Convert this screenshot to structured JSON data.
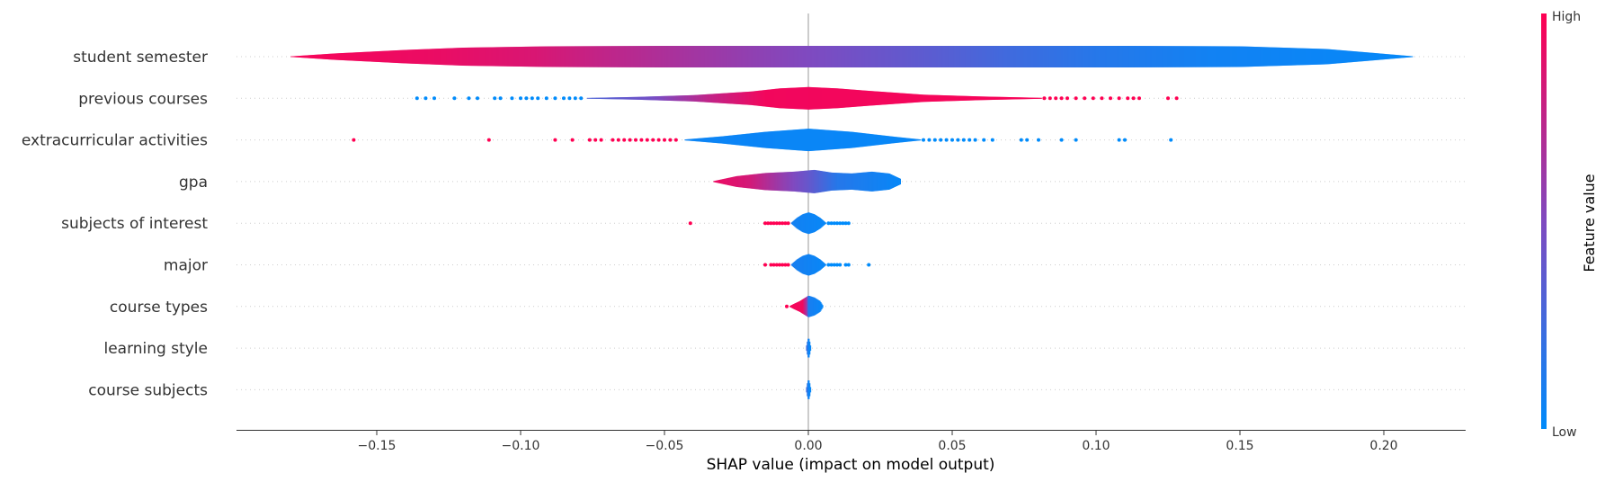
{
  "chart_data": {
    "type": "violin",
    "xlabel": "SHAP value (impact on model output)",
    "xlim": [
      -0.2,
      0.2285
    ],
    "xticks": [
      -0.15,
      -0.1,
      -0.05,
      0.0,
      0.05,
      0.1,
      0.15,
      0.2
    ],
    "xtick_labels": [
      "−0.15",
      "−0.10",
      "−0.05",
      "0.00",
      "0.05",
      "0.10",
      "0.15",
      "0.20"
    ],
    "grid": false,
    "colorbar": {
      "label": "Feature value",
      "high_label": "High",
      "low_label": "Low",
      "low_color": "#008bfb",
      "high_color": "#ff0052"
    },
    "features": [
      {
        "name": "student semester",
        "min": -0.18,
        "max": 0.21,
        "profile": [
          [
            -0.18,
            0.3
          ],
          [
            -0.165,
            3.5
          ],
          [
            -0.14,
            7.5
          ],
          [
            -0.12,
            10
          ],
          [
            -0.09,
            11.5
          ],
          [
            -0.05,
            12
          ],
          [
            -0.02,
            12
          ],
          [
            0.0,
            12
          ],
          [
            0.03,
            12
          ],
          [
            0.07,
            12
          ],
          [
            0.11,
            12
          ],
          [
            0.15,
            11.5
          ],
          [
            0.18,
            8.5
          ],
          [
            0.195,
            4.5
          ],
          [
            0.21,
            0.4
          ]
        ],
        "colors": [
          [
            -0.18,
            0.97
          ],
          [
            -0.13,
            0.92
          ],
          [
            -0.095,
            0.85
          ],
          [
            -0.07,
            0.75
          ],
          [
            -0.04,
            0.64
          ],
          [
            -0.015,
            0.55
          ],
          [
            0.015,
            0.45
          ],
          [
            0.045,
            0.35
          ],
          [
            0.07,
            0.25
          ],
          [
            0.1,
            0.15
          ],
          [
            0.14,
            0.07
          ],
          [
            0.21,
            0.02
          ]
        ],
        "outliers": []
      },
      {
        "name": "previous courses",
        "min": -0.077,
        "max": 0.081,
        "profile": [
          [
            -0.077,
            0.4
          ],
          [
            -0.06,
            1.5
          ],
          [
            -0.04,
            3.5
          ],
          [
            -0.02,
            7.5
          ],
          [
            -0.01,
            11
          ],
          [
            0.0,
            12.5
          ],
          [
            0.01,
            11
          ],
          [
            0.02,
            8.5
          ],
          [
            0.04,
            4
          ],
          [
            0.06,
            2
          ],
          [
            0.081,
            0.5
          ]
        ],
        "colors": [
          [
            -0.077,
            0.3
          ],
          [
            -0.055,
            0.45
          ],
          [
            -0.035,
            0.75
          ],
          [
            -0.015,
            0.95
          ],
          [
            0.0,
            0.95
          ],
          [
            0.081,
            0.97
          ]
        ],
        "outliers": [
          {
            "x": -0.136,
            "h": 0
          },
          {
            "x": -0.133,
            "h": 0
          },
          {
            "x": -0.13,
            "h": 0
          },
          {
            "x": -0.123,
            "h": 0
          },
          {
            "x": -0.118,
            "h": 0
          },
          {
            "x": -0.115,
            "h": 0
          },
          {
            "x": -0.109,
            "h": 0
          },
          {
            "x": -0.107,
            "h": 0
          },
          {
            "x": -0.103,
            "h": 0
          },
          {
            "x": -0.1,
            "h": 0
          },
          {
            "x": -0.098,
            "h": 0
          },
          {
            "x": -0.096,
            "h": 0
          },
          {
            "x": -0.094,
            "h": 0
          },
          {
            "x": -0.091,
            "h": 0
          },
          {
            "x": -0.088,
            "h": 0
          },
          {
            "x": -0.085,
            "h": 0
          },
          {
            "x": -0.083,
            "h": 0
          },
          {
            "x": -0.081,
            "h": 0
          },
          {
            "x": -0.079,
            "h": 0
          },
          {
            "x": 0.082,
            "h": 1
          },
          {
            "x": 0.084,
            "h": 1
          },
          {
            "x": 0.086,
            "h": 1
          },
          {
            "x": 0.088,
            "h": 1
          },
          {
            "x": 0.09,
            "h": 1
          },
          {
            "x": 0.093,
            "h": 1
          },
          {
            "x": 0.096,
            "h": 1
          },
          {
            "x": 0.099,
            "h": 1
          },
          {
            "x": 0.102,
            "h": 1
          },
          {
            "x": 0.105,
            "h": 1
          },
          {
            "x": 0.108,
            "h": 1
          },
          {
            "x": 0.111,
            "h": 1
          },
          {
            "x": 0.113,
            "h": 1
          },
          {
            "x": 0.115,
            "h": 1
          },
          {
            "x": 0.125,
            "h": 1
          },
          {
            "x": 0.128,
            "h": 1
          }
        ]
      },
      {
        "name": "extracurricular activities",
        "min": -0.043,
        "max": 0.039,
        "profile": [
          [
            -0.043,
            0.5
          ],
          [
            -0.03,
            4
          ],
          [
            -0.015,
            9
          ],
          [
            0.0,
            12.5
          ],
          [
            0.015,
            9
          ],
          [
            0.03,
            3.5
          ],
          [
            0.039,
            0.5
          ]
        ],
        "colors": [
          [
            -0.043,
            0.05
          ],
          [
            0.039,
            0.03
          ]
        ],
        "outliers": [
          {
            "x": -0.158,
            "h": 1
          },
          {
            "x": -0.111,
            "h": 1
          },
          {
            "x": -0.088,
            "h": 1
          },
          {
            "x": -0.082,
            "h": 1
          },
          {
            "x": -0.076,
            "h": 1
          },
          {
            "x": -0.074,
            "h": 1
          },
          {
            "x": -0.072,
            "h": 1
          },
          {
            "x": -0.068,
            "h": 1
          },
          {
            "x": -0.066,
            "h": 1
          },
          {
            "x": -0.064,
            "h": 1
          },
          {
            "x": -0.062,
            "h": 1
          },
          {
            "x": -0.06,
            "h": 1
          },
          {
            "x": -0.058,
            "h": 1
          },
          {
            "x": -0.056,
            "h": 1
          },
          {
            "x": -0.054,
            "h": 1
          },
          {
            "x": -0.052,
            "h": 1
          },
          {
            "x": -0.05,
            "h": 1
          },
          {
            "x": -0.048,
            "h": 1
          },
          {
            "x": -0.046,
            "h": 1
          },
          {
            "x": 0.04,
            "h": 0
          },
          {
            "x": 0.042,
            "h": 0
          },
          {
            "x": 0.044,
            "h": 0
          },
          {
            "x": 0.046,
            "h": 0
          },
          {
            "x": 0.048,
            "h": 0
          },
          {
            "x": 0.05,
            "h": 0
          },
          {
            "x": 0.052,
            "h": 0
          },
          {
            "x": 0.054,
            "h": 0
          },
          {
            "x": 0.056,
            "h": 0
          },
          {
            "x": 0.058,
            "h": 0
          },
          {
            "x": 0.061,
            "h": 0
          },
          {
            "x": 0.064,
            "h": 0
          },
          {
            "x": 0.074,
            "h": 0
          },
          {
            "x": 0.076,
            "h": 0
          },
          {
            "x": 0.08,
            "h": 0
          },
          {
            "x": 0.088,
            "h": 0
          },
          {
            "x": 0.093,
            "h": 0
          },
          {
            "x": 0.108,
            "h": 0
          },
          {
            "x": 0.11,
            "h": 0
          },
          {
            "x": 0.126,
            "h": 0
          }
        ]
      },
      {
        "name": "gpa",
        "min": -0.033,
        "max": 0.032,
        "profile": [
          [
            -0.033,
            0.5
          ],
          [
            -0.025,
            6
          ],
          [
            -0.015,
            9.5
          ],
          [
            -0.005,
            11
          ],
          [
            0.002,
            13
          ],
          [
            0.008,
            10
          ],
          [
            0.015,
            9
          ],
          [
            0.022,
            11
          ],
          [
            0.028,
            9
          ],
          [
            0.032,
            3
          ]
        ],
        "colors": [
          [
            -0.033,
            0.93
          ],
          [
            -0.02,
            0.82
          ],
          [
            -0.01,
            0.6
          ],
          [
            0.0,
            0.4
          ],
          [
            0.01,
            0.15
          ],
          [
            0.032,
            0.03
          ]
        ],
        "outliers": []
      },
      {
        "name": "subjects of interest",
        "min": -0.006,
        "max": 0.006,
        "profile": [
          [
            -0.006,
            0.5
          ],
          [
            -0.004,
            6
          ],
          [
            -0.002,
            10
          ],
          [
            0.0,
            12
          ],
          [
            0.002,
            10
          ],
          [
            0.004,
            6
          ],
          [
            0.006,
            0.5
          ]
        ],
        "colors": [
          [
            -0.006,
            0.08
          ],
          [
            0.006,
            0.03
          ]
        ],
        "outliers": [
          {
            "x": -0.041,
            "h": 1
          },
          {
            "x": -0.015,
            "h": 1
          },
          {
            "x": -0.014,
            "h": 1
          },
          {
            "x": -0.013,
            "h": 1
          },
          {
            "x": -0.012,
            "h": 1
          },
          {
            "x": -0.011,
            "h": 1
          },
          {
            "x": -0.01,
            "h": 1
          },
          {
            "x": -0.009,
            "h": 1
          },
          {
            "x": -0.008,
            "h": 1
          },
          {
            "x": -0.007,
            "h": 1
          },
          {
            "x": 0.007,
            "h": 0
          },
          {
            "x": 0.008,
            "h": 0
          },
          {
            "x": 0.009,
            "h": 0
          },
          {
            "x": 0.01,
            "h": 0
          },
          {
            "x": 0.011,
            "h": 0
          },
          {
            "x": 0.012,
            "h": 0
          },
          {
            "x": 0.013,
            "h": 0
          },
          {
            "x": 0.014,
            "h": 0
          }
        ]
      },
      {
        "name": "major",
        "min": -0.006,
        "max": 0.006,
        "profile": [
          [
            -0.006,
            0.5
          ],
          [
            -0.004,
            6
          ],
          [
            -0.002,
            10
          ],
          [
            0.0,
            12
          ],
          [
            0.002,
            10
          ],
          [
            0.004,
            6
          ],
          [
            0.006,
            0.5
          ]
        ],
        "colors": [
          [
            -0.006,
            0.1
          ],
          [
            0.006,
            0.03
          ]
        ],
        "outliers": [
          {
            "x": -0.015,
            "h": 1
          },
          {
            "x": -0.013,
            "h": 1
          },
          {
            "x": -0.012,
            "h": 1
          },
          {
            "x": -0.011,
            "h": 1
          },
          {
            "x": -0.01,
            "h": 1
          },
          {
            "x": -0.009,
            "h": 1
          },
          {
            "x": -0.008,
            "h": 1
          },
          {
            "x": -0.007,
            "h": 1
          },
          {
            "x": 0.007,
            "h": 0
          },
          {
            "x": 0.008,
            "h": 0
          },
          {
            "x": 0.009,
            "h": 0
          },
          {
            "x": 0.01,
            "h": 0
          },
          {
            "x": 0.011,
            "h": 0
          },
          {
            "x": 0.013,
            "h": 0
          },
          {
            "x": 0.014,
            "h": 0
          },
          {
            "x": 0.021,
            "h": 0
          }
        ]
      },
      {
        "name": "course types",
        "min": -0.0065,
        "max": 0.005,
        "profile": [
          [
            -0.0065,
            0.5
          ],
          [
            -0.005,
            3
          ],
          [
            -0.003,
            6
          ],
          [
            -0.001,
            10
          ],
          [
            0.0,
            12
          ],
          [
            0.002,
            10
          ],
          [
            0.004,
            6
          ],
          [
            0.005,
            0.8
          ]
        ],
        "colors": [
          [
            -0.0065,
            0.97
          ],
          [
            -0.002,
            0.94
          ],
          [
            -0.0005,
            0.6
          ],
          [
            0.0,
            0.1
          ],
          [
            0.005,
            0.03
          ]
        ],
        "outliers": [
          {
            "x": -0.0075,
            "h": 1
          }
        ]
      },
      {
        "name": "learning style",
        "min": -0.0008,
        "max": 0.0008,
        "profile": [
          [
            -0.0008,
            0.5
          ],
          [
            -0.0005,
            6
          ],
          [
            0.0,
            12
          ],
          [
            0.0005,
            6
          ],
          [
            0.0008,
            0.5
          ]
        ],
        "colors": [
          [
            -0.0008,
            0.3
          ],
          [
            0.0,
            0.05
          ],
          [
            0.0008,
            0.03
          ]
        ],
        "outliers": []
      },
      {
        "name": "course subjects",
        "min": -0.0008,
        "max": 0.0008,
        "profile": [
          [
            -0.0008,
            0.5
          ],
          [
            -0.0005,
            6
          ],
          [
            0.0,
            12
          ],
          [
            0.0005,
            6
          ],
          [
            0.0008,
            0.5
          ]
        ],
        "colors": [
          [
            -0.0008,
            0.3
          ],
          [
            0.0,
            0.05
          ],
          [
            0.0008,
            0.03
          ]
        ],
        "outliers": []
      }
    ]
  }
}
